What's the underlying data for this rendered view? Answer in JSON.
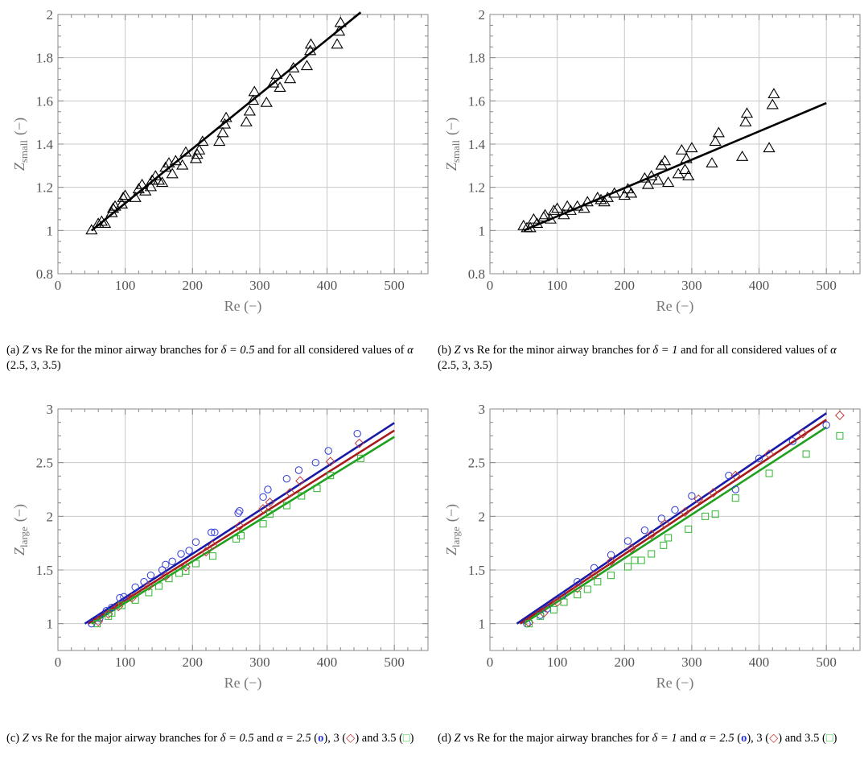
{
  "chart_data": [
    {
      "id": "a",
      "type": "scatter",
      "xlabel": "Re (−)",
      "ylabel_main": "Z",
      "ylabel_sub": "small",
      "ylabel_unit": "(−)",
      "xlim": [
        0,
        550
      ],
      "ylim": [
        0.8,
        2.0
      ],
      "xticks": [
        0,
        100,
        200,
        300,
        400,
        500
      ],
      "yticks": [
        0.8,
        1.0,
        1.2,
        1.4,
        1.6,
        1.8,
        2.0
      ],
      "grid": true,
      "series": [
        {
          "marker": "triangle",
          "color": "#000000",
          "points": [
            [
              50,
              1.0
            ],
            [
              60,
              1.03
            ],
            [
              65,
              1.04
            ],
            [
              70,
              1.03
            ],
            [
              80,
              1.08
            ],
            [
              82,
              1.1
            ],
            [
              85,
              1.11
            ],
            [
              95,
              1.12
            ],
            [
              97,
              1.15
            ],
            [
              100,
              1.16
            ],
            [
              115,
              1.15
            ],
            [
              120,
              1.19
            ],
            [
              125,
              1.21
            ],
            [
              130,
              1.18
            ],
            [
              138,
              1.2
            ],
            [
              140,
              1.23
            ],
            [
              145,
              1.25
            ],
            [
              150,
              1.23
            ],
            [
              155,
              1.22
            ],
            [
              160,
              1.29
            ],
            [
              165,
              1.31
            ],
            [
              170,
              1.26
            ],
            [
              175,
              1.32
            ],
            [
              185,
              1.3
            ],
            [
              190,
              1.36
            ],
            [
              205,
              1.33
            ],
            [
              207,
              1.35
            ],
            [
              210,
              1.37
            ],
            [
              215,
              1.41
            ],
            [
              240,
              1.41
            ],
            [
              245,
              1.45
            ],
            [
              248,
              1.49
            ],
            [
              250,
              1.52
            ],
            [
              280,
              1.5
            ],
            [
              285,
              1.55
            ],
            [
              290,
              1.6
            ],
            [
              292,
              1.64
            ],
            [
              310,
              1.59
            ],
            [
              320,
              1.68
            ],
            [
              325,
              1.72
            ],
            [
              330,
              1.66
            ],
            [
              345,
              1.7
            ],
            [
              350,
              1.75
            ],
            [
              370,
              1.76
            ],
            [
              375,
              1.83
            ],
            [
              376,
              1.86
            ],
            [
              415,
              1.86
            ],
            [
              418,
              1.92
            ],
            [
              420,
              1.96
            ]
          ]
        }
      ],
      "fit_lines": [
        {
          "color": "#000000",
          "from": [
            50,
            1.0
          ],
          "to": [
            450,
            2.01
          ]
        }
      ]
    },
    {
      "id": "b",
      "type": "scatter",
      "xlabel": "Re (−)",
      "ylabel_main": "Z",
      "ylabel_sub": "small",
      "ylabel_unit": "(−)",
      "xlim": [
        0,
        550
      ],
      "ylim": [
        0.8,
        2.0
      ],
      "xticks": [
        0,
        100,
        200,
        300,
        400,
        500
      ],
      "yticks": [
        0.8,
        1.0,
        1.2,
        1.4,
        1.6,
        1.8,
        2.0
      ],
      "grid": true,
      "series": [
        {
          "marker": "triangle",
          "color": "#000000",
          "points": [
            [
              50,
              1.02
            ],
            [
              55,
              1.01
            ],
            [
              60,
              1.01
            ],
            [
              65,
              1.05
            ],
            [
              70,
              1.03
            ],
            [
              80,
              1.06
            ],
            [
              82,
              1.07
            ],
            [
              90,
              1.05
            ],
            [
              95,
              1.09
            ],
            [
              100,
              1.1
            ],
            [
              110,
              1.07
            ],
            [
              115,
              1.11
            ],
            [
              120,
              1.09
            ],
            [
              130,
              1.11
            ],
            [
              140,
              1.1
            ],
            [
              145,
              1.13
            ],
            [
              160,
              1.15
            ],
            [
              165,
              1.14
            ],
            [
              170,
              1.13
            ],
            [
              175,
              1.15
            ],
            [
              185,
              1.17
            ],
            [
              200,
              1.16
            ],
            [
              205,
              1.19
            ],
            [
              210,
              1.17
            ],
            [
              230,
              1.24
            ],
            [
              235,
              1.21
            ],
            [
              240,
              1.25
            ],
            [
              250,
              1.23
            ],
            [
              255,
              1.3
            ],
            [
              260,
              1.32
            ],
            [
              265,
              1.22
            ],
            [
              280,
              1.26
            ],
            [
              285,
              1.37
            ],
            [
              290,
              1.28
            ],
            [
              292,
              1.33
            ],
            [
              295,
              1.25
            ],
            [
              300,
              1.38
            ],
            [
              330,
              1.31
            ],
            [
              335,
              1.41
            ],
            [
              340,
              1.45
            ],
            [
              375,
              1.34
            ],
            [
              380,
              1.5
            ],
            [
              382,
              1.54
            ],
            [
              415,
              1.38
            ],
            [
              420,
              1.58
            ],
            [
              422,
              1.63
            ]
          ]
        }
      ],
      "fit_lines": [
        {
          "color": "#000000",
          "from": [
            50,
            1.0
          ],
          "to": [
            500,
            1.59
          ]
        }
      ]
    },
    {
      "id": "c",
      "type": "scatter",
      "xlabel": "Re (−)",
      "ylabel_main": "Z",
      "ylabel_sub": "large",
      "ylabel_unit": "(−)",
      "xlim": [
        0,
        550
      ],
      "ylim": [
        0.75,
        3.0
      ],
      "xticks": [
        0,
        100,
        200,
        300,
        400,
        500
      ],
      "yticks": [
        1.0,
        1.5,
        2.0,
        2.5,
        3.0
      ],
      "grid": true,
      "series": [
        {
          "marker": "circle",
          "color": "#2b36d8",
          "points": [
            [
              50,
              1.0
            ],
            [
              62,
              1.05
            ],
            [
              72,
              1.12
            ],
            [
              80,
              1.15
            ],
            [
              92,
              1.24
            ],
            [
              98,
              1.25
            ],
            [
              115,
              1.34
            ],
            [
              128,
              1.39
            ],
            [
              138,
              1.45
            ],
            [
              155,
              1.5
            ],
            [
              160,
              1.55
            ],
            [
              170,
              1.58
            ],
            [
              183,
              1.65
            ],
            [
              195,
              1.68
            ],
            [
              205,
              1.76
            ],
            [
              228,
              1.85
            ],
            [
              233,
              1.85
            ],
            [
              268,
              2.03
            ],
            [
              270,
              2.05
            ],
            [
              305,
              2.18
            ],
            [
              312,
              2.25
            ],
            [
              340,
              2.35
            ],
            [
              358,
              2.43
            ],
            [
              383,
              2.5
            ],
            [
              402,
              2.61
            ],
            [
              445,
              2.77
            ]
          ]
        },
        {
          "marker": "diamond",
          "color": "#c03a3a",
          "points": [
            [
              60,
              1.02
            ],
            [
              75,
              1.09
            ],
            [
              90,
              1.16
            ],
            [
              110,
              1.24
            ],
            [
              135,
              1.35
            ],
            [
              160,
              1.44
            ],
            [
              190,
              1.53
            ],
            [
              220,
              1.67
            ],
            [
              230,
              1.73
            ],
            [
              270,
              1.91
            ],
            [
              305,
              2.07
            ],
            [
              315,
              2.13
            ],
            [
              345,
              2.22
            ],
            [
              360,
              2.33
            ],
            [
              405,
              2.51
            ],
            [
              448,
              2.68
            ]
          ]
        },
        {
          "marker": "square",
          "color": "#2fb52f",
          "points": [
            [
              58,
              1.0
            ],
            [
              75,
              1.07
            ],
            [
              80,
              1.1
            ],
            [
              95,
              1.17
            ],
            [
              115,
              1.22
            ],
            [
              135,
              1.29
            ],
            [
              150,
              1.35
            ],
            [
              165,
              1.42
            ],
            [
              180,
              1.47
            ],
            [
              190,
              1.49
            ],
            [
              205,
              1.56
            ],
            [
              230,
              1.63
            ],
            [
              265,
              1.79
            ],
            [
              272,
              1.82
            ],
            [
              305,
              1.93
            ],
            [
              315,
              2.02
            ],
            [
              340,
              2.1
            ],
            [
              362,
              2.19
            ],
            [
              385,
              2.26
            ],
            [
              405,
              2.38
            ],
            [
              450,
              2.54
            ]
          ]
        }
      ],
      "fit_lines": [
        {
          "color": "#1a1aa8",
          "from": [
            40,
            1.0
          ],
          "to": [
            500,
            2.87
          ]
        },
        {
          "color": "#a81a1a",
          "from": [
            45,
            1.0
          ],
          "to": [
            500,
            2.8
          ]
        },
        {
          "color": "#1fa01f",
          "from": [
            50,
            1.0
          ],
          "to": [
            500,
            2.74
          ]
        }
      ]
    },
    {
      "id": "d",
      "type": "scatter",
      "xlabel": "Re (−)",
      "ylabel_main": "Z",
      "ylabel_sub": "large",
      "ylabel_unit": "(−)",
      "xlim": [
        0,
        550
      ],
      "ylim": [
        0.75,
        3.0
      ],
      "xticks": [
        0,
        100,
        200,
        300,
        400,
        500
      ],
      "yticks": [
        1.0,
        1.5,
        2.0,
        2.5,
        3.0
      ],
      "grid": true,
      "series": [
        {
          "marker": "circle",
          "color": "#2b36d8",
          "points": [
            [
              55,
              1.0
            ],
            [
              75,
              1.08
            ],
            [
              85,
              1.14
            ],
            [
              108,
              1.26
            ],
            [
              130,
              1.39
            ],
            [
              155,
              1.52
            ],
            [
              180,
              1.64
            ],
            [
              205,
              1.77
            ],
            [
              230,
              1.87
            ],
            [
              255,
              1.98
            ],
            [
              275,
              2.06
            ],
            [
              300,
              2.19
            ],
            [
              355,
              2.38
            ],
            [
              365,
              2.25
            ],
            [
              400,
              2.54
            ],
            [
              450,
              2.7
            ],
            [
              500,
              2.85
            ]
          ]
        },
        {
          "marker": "diamond",
          "color": "#c03a3a",
          "points": [
            [
              58,
              1.01
            ],
            [
              80,
              1.1
            ],
            [
              100,
              1.2
            ],
            [
              130,
              1.33
            ],
            [
              155,
              1.45
            ],
            [
              180,
              1.58
            ],
            [
              210,
              1.7
            ],
            [
              240,
              1.83
            ],
            [
              260,
              1.93
            ],
            [
              290,
              2.04
            ],
            [
              310,
              2.16
            ],
            [
              332,
              2.22
            ],
            [
              365,
              2.38
            ],
            [
              415,
              2.58
            ],
            [
              465,
              2.77
            ],
            [
              520,
              2.94
            ]
          ]
        },
        {
          "marker": "square",
          "color": "#2fb52f",
          "points": [
            [
              58,
              1.0
            ],
            [
              75,
              1.07
            ],
            [
              95,
              1.13
            ],
            [
              110,
              1.2
            ],
            [
              130,
              1.27
            ],
            [
              145,
              1.32
            ],
            [
              160,
              1.39
            ],
            [
              180,
              1.45
            ],
            [
              205,
              1.53
            ],
            [
              215,
              1.59
            ],
            [
              225,
              1.59
            ],
            [
              240,
              1.65
            ],
            [
              258,
              1.73
            ],
            [
              265,
              1.8
            ],
            [
              295,
              1.88
            ],
            [
              320,
              2.0
            ],
            [
              335,
              2.02
            ],
            [
              365,
              2.17
            ],
            [
              415,
              2.4
            ],
            [
              470,
              2.58
            ],
            [
              520,
              2.75
            ]
          ]
        }
      ],
      "fit_lines": [
        {
          "color": "#1a1aa8",
          "from": [
            40,
            1.0
          ],
          "to": [
            500,
            2.96
          ]
        },
        {
          "color": "#a81a1a",
          "from": [
            45,
            1.0
          ],
          "to": [
            500,
            2.9
          ]
        },
        {
          "color": "#1fa01f",
          "from": [
            50,
            1.0
          ],
          "to": [
            500,
            2.83
          ]
        }
      ]
    }
  ],
  "captions": {
    "a": {
      "pre": "(a) ",
      "m1": "Z",
      "t1": " vs Re for the minor airway branches for ",
      "m2": "δ = 0.5",
      "t2": " and for all considered values of ",
      "m3": "α",
      "t3": " (2.5, 3, 3.5)"
    },
    "b": {
      "pre": "(b) ",
      "m1": "Z",
      "t1": " vs Re for the minor airway branches for ",
      "m2": "δ = 1",
      "t2": " and for all considered values of ",
      "m3": "α",
      "t3": " (2.5, 3, 3.5)"
    },
    "c": {
      "pre": "(c) ",
      "m1": "Z",
      "t1": " vs Re for the major airway branches for ",
      "m2": "δ = 0.5",
      "t2": " and ",
      "m3": "α = 2.5",
      "o": "o",
      "t4": "), 3 (",
      "d": "◇",
      "t5": ") and 3.5 (",
      "s": "□",
      "t6": ")"
    },
    "d": {
      "pre": "(d) ",
      "m1": "Z",
      "t1": " vs Re for the major airway branches for ",
      "m2": "δ = 1",
      "t2": " and ",
      "m3": "α = 2.5",
      "o": "o",
      "t4": "), 3 (",
      "d": "◇",
      "t5": ") and 3.5 (",
      "s": "□",
      "t6": ")"
    }
  }
}
